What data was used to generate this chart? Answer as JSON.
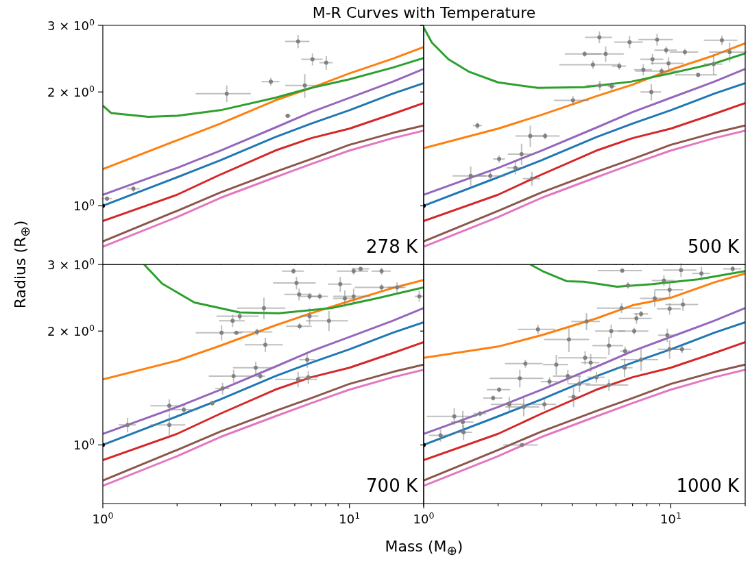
{
  "chart_data": [
    {
      "type": "line",
      "title": "M-R Curves with Temperature",
      "ylabel": "Radius (R$_{⊕}$)",
      "annotations": [
        "278 K"
      ],
      "log": "xy",
      "tick_labels": "y",
      "xlim": [
        1,
        20
      ],
      "ylim": [
        0.7,
        3
      ],
      "xticks": [
        {
          "value": 1,
          "label": null
        },
        {
          "value": 2,
          "label": null
        },
        {
          "value": 3,
          "label": null
        },
        {
          "value": 4,
          "label": null
        },
        {
          "value": 5,
          "label": null
        },
        {
          "value": 6,
          "label": null
        },
        {
          "value": 7,
          "label": null
        },
        {
          "value": 8,
          "label": null
        },
        {
          "value": 9,
          "label": null
        },
        {
          "value": 10,
          "label": null
        },
        {
          "value": 20,
          "label": null
        }
      ],
      "yticks": [
        {
          "value": 1,
          "label": "10$^{0}$"
        },
        {
          "value": 2,
          "label": "2 × 10$^{0}$"
        },
        {
          "value": 3,
          "label": "3 × 10$^{0}$"
        }
      ],
      "x": [
        1,
        2,
        3,
        5,
        7,
        10,
        15,
        20
      ],
      "series": [
        {
          "type": "line",
          "color": "#1f77b4",
          "values": [
            1.0,
            1.19,
            1.32,
            1.52,
            1.65,
            1.79,
            1.98,
            2.11
          ]
        },
        {
          "type": "line",
          "color": "#ff7f0e",
          "values": [
            1.25,
            1.49,
            1.65,
            1.9,
            2.05,
            2.24,
            2.45,
            2.63
          ]
        },
        {
          "type": "line",
          "color": "#2ca02c",
          "x": [
            1,
            1.08,
            1.53,
            2,
            3,
            5,
            7,
            10,
            15,
            20
          ],
          "values": [
            1.84,
            1.76,
            1.72,
            1.73,
            1.79,
            1.93,
            2.05,
            2.16,
            2.32,
            2.46
          ]
        },
        {
          "type": "line",
          "color": "#d62728",
          "values": [
            0.912,
            1.07,
            1.21,
            1.4,
            1.51,
            1.6,
            1.75,
            1.87
          ]
        },
        {
          "type": "line",
          "color": "#9467bd",
          "values": [
            1.07,
            1.26,
            1.4,
            1.61,
            1.77,
            1.93,
            2.13,
            2.3
          ]
        },
        {
          "type": "line",
          "color": "#8c564b",
          "values": [
            0.805,
            0.97,
            1.085,
            1.23,
            1.33,
            1.45,
            1.56,
            1.63
          ]
        },
        {
          "type": "line",
          "color": "#e377c2",
          "values": [
            0.78,
            0.934,
            1.05,
            1.19,
            1.29,
            1.4,
            1.51,
            1.58
          ]
        },
        {
          "type": "scatter",
          "color": "#808080",
          "marker": "circle",
          "x": [
            6.19,
            7.08,
            8.05,
            4.8,
            3.18,
            6.59,
            5.62,
            1.33,
            1.04
          ],
          "values": [
            2.72,
            2.44,
            2.39,
            2.13,
            1.98,
            2.08,
            1.73,
            1.11,
            1.045
          ],
          "xerrors": [
            0.7,
            0.7,
            0.5,
            0.4,
            0.8,
            1.1,
            0.15,
            0.08,
            0.05
          ],
          "errors": [
            0.11,
            0.09,
            0.1,
            0.05,
            0.1,
            0.15,
            0.02,
            0.02,
            0.01
          ]
        },
        {
          "type": "scatter",
          "color": "#000000",
          "marker": "circle",
          "x": [
            1
          ],
          "values": [
            1
          ]
        }
      ]
    },
    {
      "type": "line",
      "annotations": [
        "500 K"
      ],
      "log": "xy",
      "tick_labels": false,
      "xlim": [
        1,
        20
      ],
      "ylim": [
        0.7,
        3
      ],
      "xticks": [
        {
          "value": 1,
          "label": null
        },
        {
          "value": 2,
          "label": null
        },
        {
          "value": 3,
          "label": null
        },
        {
          "value": 4,
          "label": null
        },
        {
          "value": 5,
          "label": null
        },
        {
          "value": 6,
          "label": null
        },
        {
          "value": 7,
          "label": null
        },
        {
          "value": 8,
          "label": null
        },
        {
          "value": 9,
          "label": null
        },
        {
          "value": 10,
          "label": null
        },
        {
          "value": 20,
          "label": null
        }
      ],
      "yticks": [
        {
          "value": 1,
          "label": null
        },
        {
          "value": 2,
          "label": null
        },
        {
          "value": 3,
          "label": null
        }
      ],
      "x": [
        1,
        2,
        3,
        5,
        7,
        10,
        15,
        20
      ],
      "series": [
        {
          "type": "line",
          "color": "#1f77b4",
          "values": [
            1.0,
            1.19,
            1.32,
            1.52,
            1.65,
            1.79,
            1.98,
            2.11
          ]
        },
        {
          "type": "line",
          "color": "#ff7f0e",
          "values": [
            1.42,
            1.6,
            1.74,
            1.95,
            2.09,
            2.29,
            2.5,
            2.69
          ]
        },
        {
          "type": "line",
          "color": "#2ca02c",
          "x": [
            1,
            1.08,
            1.26,
            1.53,
            2,
            2.9,
            4.45,
            6.93,
            10,
            15,
            20
          ],
          "values": [
            2.96,
            2.7,
            2.44,
            2.26,
            2.12,
            2.05,
            2.06,
            2.13,
            2.24,
            2.38,
            2.53
          ]
        },
        {
          "type": "line",
          "color": "#d62728",
          "values": [
            0.912,
            1.07,
            1.21,
            1.4,
            1.51,
            1.6,
            1.75,
            1.87
          ]
        },
        {
          "type": "line",
          "color": "#9467bd",
          "values": [
            1.07,
            1.26,
            1.4,
            1.61,
            1.77,
            1.93,
            2.13,
            2.3
          ]
        },
        {
          "type": "line",
          "color": "#8c564b",
          "values": [
            0.805,
            0.97,
            1.085,
            1.23,
            1.33,
            1.45,
            1.56,
            1.63
          ]
        },
        {
          "type": "line",
          "color": "#e377c2",
          "values": [
            0.78,
            0.934,
            1.05,
            1.19,
            1.29,
            1.4,
            1.51,
            1.58
          ]
        },
        {
          "type": "scatter",
          "color": "#808080",
          "marker": "circle",
          "x": [
            5.14,
            6.81,
            8.8,
            16.1,
            4.48,
            5.45,
            4.84,
            6.19,
            9.58,
            11.4,
            8.43,
            9.79,
            7.74,
            9.18,
            12.9,
            14.9,
            17.3,
            5.16,
            5.77,
            8.34,
            4.02,
            1.65,
            2.7,
            3.1,
            2.49,
            2.02,
            1.86,
            1.55,
            2.35,
            2.74
          ],
          "values": [
            2.79,
            2.71,
            2.75,
            2.74,
            2.52,
            2.52,
            2.36,
            2.34,
            2.58,
            2.55,
            2.44,
            2.38,
            2.29,
            2.27,
            2.22,
            2.37,
            2.55,
            2.08,
            2.07,
            2.0,
            1.9,
            1.63,
            1.53,
            1.53,
            1.37,
            1.33,
            1.2,
            1.2,
            1.26,
            1.18
          ],
          "xerrors": [
            0.65,
            0.9,
            1.4,
            2.5,
            0.75,
            1.0,
            1.3,
            0.4,
            1.0,
            1.5,
            0.9,
            1.5,
            0.65,
            2.0,
            2.5,
            1.3,
            3.0,
            0.6,
            0.2,
            0.8,
            0.65,
            0.07,
            0.35,
            0.45,
            0.3,
            0.11,
            0.28,
            0.24,
            0.18,
            0.22
          ],
          "errors": [
            0.1,
            0.1,
            0.1,
            0.08,
            0.04,
            0.12,
            0.06,
            0.05,
            0.06,
            0.05,
            0.08,
            0.09,
            0.08,
            0.05,
            0.03,
            0.15,
            0.15,
            0.06,
            0.05,
            0.1,
            0.05,
            0.03,
            0.1,
            0.03,
            0.09,
            0.03,
            0.03,
            0.07,
            0.05,
            0.05
          ]
        },
        {
          "type": "scatter",
          "color": "#000000",
          "marker": "circle",
          "x": [
            1
          ],
          "values": [
            1
          ]
        }
      ]
    },
    {
      "type": "line",
      "xlabel": "Mass (M$_{⊕}$)",
      "annotations": [
        "700 K"
      ],
      "log": "xy",
      "xlim": [
        1,
        20
      ],
      "ylim": [
        0.7,
        3
      ],
      "xticks": [
        {
          "value": 1,
          "label": "10$^{0}$"
        },
        {
          "value": 2,
          "label": null
        },
        {
          "value": 3,
          "label": null
        },
        {
          "value": 4,
          "label": null
        },
        {
          "value": 5,
          "label": null
        },
        {
          "value": 6,
          "label": null
        },
        {
          "value": 7,
          "label": null
        },
        {
          "value": 8,
          "label": null
        },
        {
          "value": 9,
          "label": null
        },
        {
          "value": 10,
          "label": "10$^{1}$"
        },
        {
          "value": 20,
          "label": null
        }
      ],
      "yticks": [
        {
          "value": 1,
          "label": "10$^{0}$"
        },
        {
          "value": 2,
          "label": "2 × 10$^{0}$"
        },
        {
          "value": 3,
          "label": "3 × 10$^{0}$"
        }
      ],
      "x": [
        1,
        2,
        3,
        5,
        7,
        10,
        15,
        20
      ],
      "series": [
        {
          "type": "line",
          "color": "#1f77b4",
          "values": [
            1.0,
            1.19,
            1.32,
            1.52,
            1.65,
            1.79,
            1.98,
            2.11
          ]
        },
        {
          "type": "line",
          "color": "#ff7f0e",
          "values": [
            1.49,
            1.67,
            1.83,
            2.07,
            2.23,
            2.4,
            2.6,
            2.73
          ]
        },
        {
          "type": "line",
          "color": "#2ca02c",
          "x": [
            1.47,
            1.74,
            2.35,
            3.59,
            5.17,
            8.43,
            12.9,
            20
          ],
          "values": [
            3.0,
            2.67,
            2.38,
            2.24,
            2.23,
            2.3,
            2.44,
            2.61
          ]
        },
        {
          "type": "line",
          "color": "#d62728",
          "values": [
            0.912,
            1.07,
            1.21,
            1.4,
            1.51,
            1.6,
            1.75,
            1.87
          ]
        },
        {
          "type": "line",
          "color": "#9467bd",
          "values": [
            1.07,
            1.26,
            1.4,
            1.61,
            1.77,
            1.93,
            2.13,
            2.3
          ]
        },
        {
          "type": "line",
          "color": "#8c564b",
          "values": [
            0.805,
            0.97,
            1.085,
            1.23,
            1.33,
            1.45,
            1.56,
            1.63
          ]
        },
        {
          "type": "line",
          "color": "#e377c2",
          "values": [
            0.78,
            0.934,
            1.05,
            1.19,
            1.29,
            1.4,
            1.51,
            1.58
          ]
        },
        {
          "type": "scatter",
          "color": "#808080",
          "marker": "circle",
          "x": [
            4.5,
            3.59,
            3.36,
            3.03,
            3.48,
            4.22,
            4.56,
            6.1,
            5.93,
            6.25,
            6.89,
            9.18,
            10.4,
            11.1,
            13.5,
            13.5,
            10.4,
            9.58,
            15.6,
            19.2,
            7.58,
            6.89,
            8.26,
            6.28,
            6.74,
            4.17,
            3.39,
            4.35,
            6.19,
            6.81,
            3.06,
            2.78,
            1.86,
            2.13,
            1.86,
            1.26
          ],
          "values": [
            2.3,
            2.19,
            2.13,
            1.98,
            1.98,
            1.99,
            1.84,
            2.68,
            2.88,
            2.5,
            2.47,
            2.66,
            2.88,
            2.92,
            2.88,
            2.61,
            2.47,
            2.44,
            2.61,
            2.47,
            2.47,
            2.19,
            2.13,
            2.06,
            1.68,
            1.6,
            1.52,
            1.52,
            1.49,
            1.51,
            1.41,
            1.29,
            1.27,
            1.24,
            1.13,
            1.13
          ],
          "xerrors": [
            1.0,
            0.7,
            0.4,
            0.65,
            0.1,
            0.65,
            0.8,
            1.2,
            0.6,
            0.8,
            0.6,
            1.0,
            1.5,
            0.9,
            1.2,
            3.0,
            1.8,
            1.0,
            1.3,
            0.8,
            0.6,
            0.6,
            1.6,
            0.75,
            0.5,
            0.8,
            0.7,
            0.2,
            1.2,
            0.6,
            0.2,
            0.06,
            0.3,
            0.3,
            0.3,
            0.1
          ],
          "errors": [
            0.15,
            0.05,
            0.08,
            0.09,
            0.02,
            0.04,
            0.08,
            0.1,
            0.05,
            0.09,
            0.05,
            0.12,
            0.06,
            0.04,
            0.06,
            0.05,
            0.12,
            0.12,
            0.08,
            0.08,
            0.05,
            0.11,
            0.13,
            0.04,
            0.08,
            0.06,
            0.06,
            0.03,
            0.07,
            0.06,
            0.05,
            0.02,
            0.05,
            0.02,
            0.08,
            0.05
          ]
        },
        {
          "type": "scatter",
          "color": "#000000",
          "marker": "circle",
          "x": [
            1
          ],
          "values": [
            1
          ]
        }
      ]
    },
    {
      "type": "line",
      "annotations": [
        "1000 K"
      ],
      "log": "xy",
      "tick_labels": "x",
      "xlim": [
        1,
        20
      ],
      "ylim": [
        0.7,
        3
      ],
      "xticks": [
        {
          "value": 1,
          "label": "10$^{0}$"
        },
        {
          "value": 2,
          "label": null
        },
        {
          "value": 3,
          "label": null
        },
        {
          "value": 4,
          "label": null
        },
        {
          "value": 5,
          "label": null
        },
        {
          "value": 6,
          "label": null
        },
        {
          "value": 7,
          "label": null
        },
        {
          "value": 8,
          "label": null
        },
        {
          "value": 9,
          "label": null
        },
        {
          "value": 10,
          "label": "10$^{1}$"
        },
        {
          "value": 20,
          "label": null
        }
      ],
      "yticks": [
        {
          "value": 1,
          "label": null
        },
        {
          "value": 2,
          "label": null
        },
        {
          "value": 3,
          "label": null
        }
      ],
      "x": [
        1,
        2,
        3,
        5,
        7,
        10,
        15,
        20
      ],
      "series": [
        {
          "type": "line",
          "color": "#1f77b4",
          "values": [
            1.0,
            1.19,
            1.32,
            1.52,
            1.65,
            1.79,
            1.98,
            2.11
          ]
        },
        {
          "type": "line",
          "color": "#ff7f0e",
          "values": [
            1.7,
            1.82,
            1.95,
            2.16,
            2.34,
            2.45,
            2.69,
            2.84
          ]
        },
        {
          "type": "line",
          "color": "#2ca02c",
          "x": [
            2.7,
            3.03,
            3.79,
            4.45,
            6.06,
            8.43,
            12.9,
            20
          ],
          "values": [
            3.0,
            2.88,
            2.71,
            2.7,
            2.62,
            2.66,
            2.74,
            2.88
          ]
        },
        {
          "type": "line",
          "color": "#d62728",
          "values": [
            0.912,
            1.07,
            1.21,
            1.4,
            1.51,
            1.6,
            1.75,
            1.87
          ]
        },
        {
          "type": "line",
          "color": "#9467bd",
          "values": [
            1.07,
            1.26,
            1.4,
            1.61,
            1.77,
            1.93,
            2.13,
            2.3
          ]
        },
        {
          "type": "line",
          "color": "#8c564b",
          "values": [
            0.805,
            0.97,
            1.085,
            1.23,
            1.33,
            1.45,
            1.56,
            1.63
          ]
        },
        {
          "type": "line",
          "color": "#e377c2",
          "values": [
            0.78,
            0.934,
            1.05,
            1.19,
            1.29,
            1.4,
            1.51,
            1.58
          ]
        },
        {
          "type": "scatter",
          "color": "#808080",
          "marker": "circle",
          "x": [
            6.36,
            11.0,
            13.3,
            17.8,
            6.71,
            9.38,
            9.89,
            8.61,
            11.2,
            9.89,
            6.32,
            7.58,
            7.26,
            4.56,
            2.9,
            3.87,
            5.74,
            7.11,
            9.68,
            5.62,
            6.53,
            7.58,
            9.89,
            11.1,
            4.5,
            4.74,
            6.5,
            2.58,
            3.44,
            2.45,
            3.83,
            4.27,
            5.0,
            5.62,
            3.23,
            4.04,
            2.02,
            1.91,
            2.22,
            2.54,
            3.08,
            1.33,
            1.44,
            1.45,
            1.17,
            2.5,
            1.69
          ],
          "values": [
            2.89,
            2.9,
            2.84,
            2.92,
            2.64,
            2.72,
            2.57,
            2.44,
            2.35,
            2.29,
            2.3,
            2.22,
            2.16,
            2.12,
            2.02,
            1.9,
            2.0,
            2.0,
            1.95,
            1.83,
            1.77,
            1.68,
            1.79,
            1.79,
            1.7,
            1.65,
            1.6,
            1.64,
            1.63,
            1.5,
            1.52,
            1.45,
            1.51,
            1.44,
            1.47,
            1.34,
            1.4,
            1.33,
            1.28,
            1.26,
            1.28,
            1.19,
            1.15,
            1.08,
            1.06,
            1.0,
            1.21
          ],
          "xerrors": [
            1.3,
            1.7,
            1.1,
            1.5,
            0.3,
            1.0,
            1.3,
            1.1,
            1.7,
            1.1,
            1.3,
            0.5,
            1.1,
            0.6,
            0.5,
            0.8,
            0.8,
            1.0,
            0.8,
            0.8,
            0.3,
            1.3,
            1.0,
            1.0,
            1.0,
            0.4,
            0.5,
            0.45,
            0.4,
            0.6,
            0.5,
            0.45,
            0.4,
            1.1,
            0.25,
            0.2,
            0.22,
            0.17,
            0.35,
            0.4,
            0.35,
            0.3,
            0.15,
            0.12,
            0.12,
            0.4,
            0.1
          ],
          "errors": [
            0.04,
            0.12,
            0.12,
            0.05,
            0.05,
            0.09,
            0.12,
            0.12,
            0.09,
            0.08,
            0.07,
            0.04,
            0.07,
            0.11,
            0.06,
            0.14,
            0.08,
            0.04,
            0.08,
            0.1,
            0.05,
            0.11,
            0.1,
            0.04,
            0.07,
            0.09,
            0.09,
            0.04,
            0.1,
            0.08,
            0.06,
            0.07,
            0.05,
            0.05,
            0.04,
            0.08,
            0.02,
            0.02,
            0.06,
            0.07,
            0.04,
            0.06,
            0.08,
            0.05,
            0.04,
            0.01,
            0.02
          ]
        },
        {
          "type": "scatter",
          "color": "#000000",
          "marker": "circle",
          "x": [
            1
          ],
          "values": [
            1
          ]
        }
      ]
    }
  ]
}
